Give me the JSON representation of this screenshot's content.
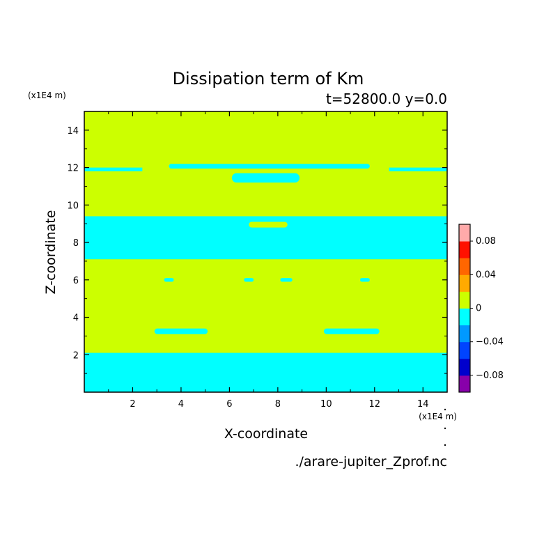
{
  "chart_data": {
    "type": "heatmap",
    "title": "Dissipation term of Km",
    "subtitle": "t=52800.0 y=0.0",
    "xlabel": "X-coordinate",
    "ylabel": "Z-coordinate",
    "x_unit": "(x1E4 m)",
    "y_unit": "(x1E4 m)",
    "xlim": [
      0,
      15
    ],
    "ylim": [
      0,
      15
    ],
    "x_ticks": [
      2,
      4,
      6,
      8,
      10,
      12,
      14
    ],
    "y_ticks": [
      2,
      4,
      6,
      8,
      10,
      12,
      14
    ],
    "x_tick_labels": [
      "2",
      "4",
      "6",
      "8",
      "10",
      "12",
      "14"
    ],
    "y_tick_labels": [
      "2",
      "4",
      "6",
      "8",
      "10",
      "12",
      "14"
    ],
    "background_level": "0 to 0.02",
    "regions": [
      {
        "level": "-0.02 to 0",
        "color": "#00ffff",
        "name": "bottom-band",
        "z_range": [
          0,
          2.1
        ],
        "x_range": [
          0,
          15
        ]
      },
      {
        "level": "-0.02 to 0",
        "color": "#00ffff",
        "name": "low-left-blob",
        "z_range": [
          3.1,
          3.4
        ],
        "x_range": [
          2.9,
          5.1
        ]
      },
      {
        "level": "-0.02 to 0",
        "color": "#00ffff",
        "name": "low-right-blob",
        "z_range": [
          3.1,
          3.4
        ],
        "x_range": [
          9.9,
          12.2
        ]
      },
      {
        "level": "-0.02 to 0",
        "color": "#00ffff",
        "name": "dot-1",
        "z_range": [
          5.9,
          6.1
        ],
        "x_range": [
          3.3,
          3.7
        ]
      },
      {
        "level": "-0.02 to 0",
        "color": "#00ffff",
        "name": "dot-2",
        "z_range": [
          5.9,
          6.1
        ],
        "x_range": [
          6.6,
          7.0
        ]
      },
      {
        "level": "-0.02 to 0",
        "color": "#00ffff",
        "name": "dot-3",
        "z_range": [
          5.9,
          6.1
        ],
        "x_range": [
          8.1,
          8.6
        ]
      },
      {
        "level": "-0.02 to 0",
        "color": "#00ffff",
        "name": "dot-4",
        "z_range": [
          5.9,
          6.1
        ],
        "x_range": [
          11.4,
          11.8
        ]
      },
      {
        "level": "-0.02 to 0",
        "color": "#00ffff",
        "name": "middle-band",
        "z_range": [
          7.1,
          9.4
        ],
        "x_range": [
          0,
          15
        ]
      },
      {
        "level": "-0.02 to 0",
        "color": "#00ffff",
        "name": "upper-center-blob",
        "z_range": [
          11.2,
          11.7
        ],
        "x_range": [
          6.1,
          8.9
        ]
      },
      {
        "level": "-0.02 to 0",
        "color": "#00ffff",
        "name": "upper-left-strip",
        "z_range": [
          11.8,
          12.0
        ],
        "x_range": [
          0,
          2.4
        ]
      },
      {
        "level": "-0.02 to 0",
        "color": "#00ffff",
        "name": "upper-center-strip",
        "z_range": [
          11.95,
          12.2
        ],
        "x_range": [
          3.5,
          11.8
        ]
      },
      {
        "level": "-0.02 to 0",
        "color": "#00ffff",
        "name": "upper-right-strip",
        "z_range": [
          11.8,
          12.0
        ],
        "x_range": [
          12.6,
          15
        ]
      },
      {
        "level": "0 to 0.02",
        "color": "#ccff00",
        "name": "inner-pocket",
        "z_range": [
          8.8,
          9.1
        ],
        "x_range": [
          6.8,
          8.4
        ]
      }
    ],
    "colorbar": {
      "levels": [
        {
          "range": "-0.1 to -0.08",
          "color": "#8800aa"
        },
        {
          "range": "-0.08 to -0.06",
          "color": "#0000cc"
        },
        {
          "range": "-0.06 to -0.04",
          "color": "#0044ff"
        },
        {
          "range": "-0.04 to -0.02",
          "color": "#0099ff"
        },
        {
          "range": "-0.02 to 0",
          "color": "#00ffff"
        },
        {
          "range": "0 to 0.02",
          "color": "#ccff00"
        },
        {
          "range": "0.02 to 0.04",
          "color": "#ffaa00"
        },
        {
          "range": "0.04 to 0.06",
          "color": "#ff6600"
        },
        {
          "range": "0.06 to 0.08",
          "color": "#ff1100"
        },
        {
          "range": "0.08 to 0.1",
          "color": "#ffaaaa"
        }
      ],
      "tick_labels": [
        "0.08",
        "0.04",
        "0",
        "−0.04",
        "−0.08"
      ]
    },
    "source_file": "./arare-jupiter_Zprof.nc",
    "colors": {
      "positive": "#ccff00",
      "negative": "#00ffff"
    }
  }
}
